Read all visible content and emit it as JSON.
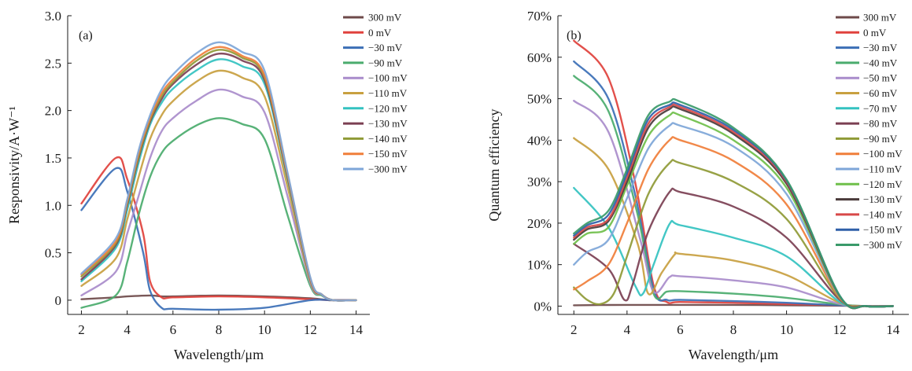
{
  "chart_data": [
    {
      "type": "line",
      "panel_label": "(a)",
      "title": "",
      "xlabel": "Wavelength/μm",
      "ylabel": "Responsivity/A·W⁻¹",
      "xlim": [
        1.4,
        14.6
      ],
      "ylim": [
        -0.15,
        3.0
      ],
      "xticks": [
        2,
        4,
        6,
        8,
        10,
        12,
        14
      ],
      "xtick_labels": [
        "2",
        "4",
        "6",
        "8",
        "10",
        "12",
        "14"
      ],
      "yticks": [
        0,
        0.5,
        1.0,
        1.5,
        2.0,
        2.5,
        3.0
      ],
      "ytick_labels": [
        "0",
        "0.5",
        "1.0",
        "1.5",
        "2.0",
        "2.5",
        "3.0"
      ],
      "grid": false,
      "legend_position": "top-right",
      "series": [
        {
          "name": "300 mV",
          "color": "#6e4a4a",
          "x": [
            2,
            3.5,
            4,
            5,
            5.5,
            6,
            8,
            10,
            12,
            12.8,
            13,
            14
          ],
          "y": [
            0.01,
            0.03,
            0.04,
            0.05,
            0.04,
            0.04,
            0.05,
            0.04,
            0.02,
            0.0,
            0.0,
            0.0
          ]
        },
        {
          "name": "0 mV",
          "color": "#e0413c",
          "x": [
            2,
            3.5,
            4,
            4.7,
            5,
            5.5,
            6,
            8,
            10,
            12,
            13,
            14
          ],
          "y": [
            1.02,
            1.5,
            1.28,
            0.7,
            0.2,
            0.03,
            0.03,
            0.04,
            0.03,
            0.01,
            0.0,
            0.0
          ]
        },
        {
          "name": "−30 mV",
          "color": "#3b6fb6",
          "x": [
            2,
            3.5,
            4,
            4.7,
            5,
            5.5,
            6,
            8,
            10,
            12,
            13,
            14
          ],
          "y": [
            0.95,
            1.39,
            1.15,
            0.5,
            0.1,
            -0.08,
            -0.09,
            -0.1,
            -0.08,
            0.0,
            0.0,
            0.0
          ]
        },
        {
          "name": "−90 mV",
          "color": "#4aab6d",
          "x": [
            2,
            3.5,
            4,
            4.5,
            5,
            5.5,
            6,
            7,
            8,
            9,
            10,
            11,
            12,
            12.5,
            13,
            14
          ],
          "y": [
            -0.08,
            0.05,
            0.4,
            0.9,
            1.3,
            1.55,
            1.68,
            1.84,
            1.92,
            1.86,
            1.7,
            0.9,
            0.15,
            0.05,
            0.0,
            0.0
          ]
        },
        {
          "name": "−100 mV",
          "color": "#a98ccb",
          "x": [
            2,
            3.5,
            4,
            4.5,
            5,
            5.5,
            6,
            7,
            8,
            9,
            10,
            11,
            12,
            12.5,
            13,
            14
          ],
          "y": [
            0.05,
            0.3,
            0.7,
            1.1,
            1.5,
            1.78,
            1.92,
            2.1,
            2.22,
            2.15,
            1.98,
            1.1,
            0.18,
            0.06,
            0.0,
            0.0
          ]
        },
        {
          "name": "−110 mV",
          "color": "#c8a040",
          "x": [
            2,
            3.5,
            4,
            4.5,
            5,
            5.5,
            6,
            7,
            8,
            9,
            10,
            11,
            12,
            12.5,
            13,
            14
          ],
          "y": [
            0.15,
            0.44,
            0.85,
            1.3,
            1.7,
            1.95,
            2.1,
            2.3,
            2.42,
            2.35,
            2.15,
            1.2,
            0.2,
            0.06,
            0.0,
            0.0
          ]
        },
        {
          "name": "−120 mV",
          "color": "#33c2c0",
          "x": [
            2,
            3.5,
            4,
            4.5,
            5,
            5.5,
            6,
            7,
            8,
            9,
            10,
            11,
            12,
            12.5,
            13,
            14
          ],
          "y": [
            0.2,
            0.55,
            0.95,
            1.45,
            1.85,
            2.08,
            2.23,
            2.42,
            2.54,
            2.47,
            2.28,
            1.28,
            0.22,
            0.06,
            0.0,
            0.0
          ]
        },
        {
          "name": "−130 mV",
          "color": "#7b3f52",
          "x": [
            2,
            3.5,
            4,
            4.5,
            5,
            5.5,
            6,
            7,
            8,
            9,
            10,
            11,
            12,
            12.5,
            13,
            14
          ],
          "y": [
            0.22,
            0.58,
            1.0,
            1.5,
            1.88,
            2.12,
            2.28,
            2.48,
            2.6,
            2.53,
            2.32,
            1.3,
            0.22,
            0.06,
            0.0,
            0.0
          ]
        },
        {
          "name": "−140 mV",
          "color": "#8f9a36",
          "x": [
            2,
            3.5,
            4,
            4.5,
            5,
            5.5,
            6,
            7,
            8,
            9,
            10,
            11,
            12,
            12.5,
            13,
            14
          ],
          "y": [
            0.25,
            0.6,
            1.02,
            1.52,
            1.9,
            2.15,
            2.3,
            2.52,
            2.64,
            2.56,
            2.35,
            1.32,
            0.23,
            0.06,
            0.0,
            0.0
          ]
        },
        {
          "name": "−150 mV",
          "color": "#f07e3a",
          "x": [
            2,
            3.5,
            4,
            4.5,
            5,
            5.5,
            6,
            7,
            8,
            9,
            10,
            11,
            12,
            12.5,
            13,
            14
          ],
          "y": [
            0.27,
            0.62,
            1.04,
            1.55,
            1.92,
            2.18,
            2.33,
            2.55,
            2.67,
            2.58,
            2.37,
            1.33,
            0.23,
            0.06,
            0.0,
            0.0
          ]
        },
        {
          "name": "−300 mV",
          "color": "#7ea6d8",
          "x": [
            2,
            3.5,
            4,
            4.5,
            5,
            5.5,
            6,
            7,
            8,
            9,
            10,
            11,
            12,
            12.5,
            13,
            14
          ],
          "y": [
            0.28,
            0.65,
            1.06,
            1.58,
            1.95,
            2.22,
            2.38,
            2.6,
            2.72,
            2.62,
            2.42,
            1.35,
            0.24,
            0.06,
            0.0,
            0.0
          ]
        }
      ]
    },
    {
      "type": "line",
      "panel_label": "(b)",
      "title": "",
      "xlabel": "Wavelength/μm",
      "ylabel": "Quantum efficiency",
      "xlim": [
        1.4,
        14.6
      ],
      "ylim": [
        -2,
        70
      ],
      "xticks": [
        2,
        4,
        6,
        8,
        10,
        12,
        14
      ],
      "xtick_labels": [
        "2",
        "4",
        "6",
        "8",
        "10",
        "12",
        "14"
      ],
      "yticks": [
        0,
        10,
        20,
        30,
        40,
        50,
        60,
        70
      ],
      "ytick_labels": [
        "0%",
        "10%",
        "20%",
        "30%",
        "40%",
        "50%",
        "60%",
        "70%"
      ],
      "grid": false,
      "legend_position": "top-right",
      "series": [
        {
          "name": "300 mV",
          "color": "#6e4a4a",
          "x": [
            2,
            4,
            6,
            8,
            10,
            12,
            13,
            14
          ],
          "y": [
            0.2,
            0.3,
            0.3,
            0.3,
            0.2,
            0.1,
            0.0,
            0.0
          ]
        },
        {
          "name": "0 mV",
          "color": "#e0413c",
          "x": [
            2,
            3.3,
            4.3,
            5,
            5.5,
            6,
            8,
            10,
            12,
            13,
            14
          ],
          "y": [
            64,
            55,
            30,
            5,
            1,
            1,
            0.8,
            0.5,
            0.2,
            0.0,
            0.0
          ]
        },
        {
          "name": "−30 mV",
          "color": "#3b6fb6",
          "x": [
            2,
            3.3,
            4.3,
            5,
            5.5,
            6,
            8,
            10,
            12,
            13,
            14
          ],
          "y": [
            59,
            50,
            27,
            4,
            1.5,
            1.5,
            1.2,
            0.8,
            0.2,
            0.0,
            0.0
          ]
        },
        {
          "name": "−40 mV",
          "color": "#4aab6d",
          "x": [
            2,
            3.3,
            4.4,
            5,
            5.5,
            6,
            8,
            10,
            12,
            13,
            14
          ],
          "y": [
            55.5,
            47,
            22,
            3,
            3.5,
            3.6,
            3,
            2,
            0.4,
            0.0,
            0.0
          ]
        },
        {
          "name": "−50 mV",
          "color": "#a98ccb",
          "x": [
            2,
            3.3,
            4.5,
            5,
            5.6,
            6,
            8,
            10,
            12,
            13,
            14
          ],
          "y": [
            49.5,
            42,
            16,
            3.5,
            7,
            7.2,
            6.2,
            4.5,
            0.5,
            0.0,
            0.0
          ]
        },
        {
          "name": "−60 mV",
          "color": "#c8a040",
          "x": [
            2,
            3.3,
            4.4,
            4.8,
            5.3,
            5.8,
            6,
            8,
            10,
            12,
            13,
            14
          ],
          "y": [
            40.5,
            33,
            15,
            3,
            8,
            12.5,
            12.6,
            11,
            7.5,
            0.8,
            0.0,
            0.0
          ]
        },
        {
          "name": "−70 mV",
          "color": "#33c2c0",
          "x": [
            2,
            3.3,
            4.3,
            4.6,
            5,
            5.6,
            6,
            8,
            10,
            12,
            13,
            14
          ],
          "y": [
            28.5,
            19,
            5,
            3,
            10,
            19.8,
            19.5,
            16.5,
            12,
            1,
            0.0,
            0.0
          ]
        },
        {
          "name": "−80 mV",
          "color": "#7b3f52",
          "x": [
            2,
            3.3,
            3.9,
            4.2,
            4.8,
            5.6,
            6,
            8,
            10,
            12,
            13,
            14
          ],
          "y": [
            15,
            9,
            1.5,
            5,
            18,
            27.5,
            27.5,
            24,
            16.5,
            1.5,
            0.0,
            0.0
          ]
        },
        {
          "name": "−90 mV",
          "color": "#8f9a36",
          "x": [
            2,
            2.5,
            3,
            3.5,
            4,
            4.8,
            5.6,
            6,
            8,
            10,
            12,
            13,
            14
          ],
          "y": [
            4.5,
            1.5,
            0.5,
            3,
            12,
            27,
            34.5,
            34.5,
            30,
            21,
            1.8,
            0.0,
            0.0
          ]
        },
        {
          "name": "−100 mV",
          "color": "#f07e3a",
          "x": [
            2,
            2.5,
            3.3,
            4,
            4.8,
            5.6,
            6,
            8,
            10,
            12,
            13,
            14
          ],
          "y": [
            4,
            6,
            10,
            20,
            33,
            40,
            40,
            35,
            24.5,
            2,
            0.0,
            0.0
          ]
        },
        {
          "name": "−110 mV",
          "color": "#7ea6d8",
          "x": [
            2,
            2.5,
            3.3,
            4,
            4.8,
            5.6,
            6,
            8,
            10,
            12,
            13,
            14
          ],
          "y": [
            10,
            13,
            16,
            26,
            38,
            43.5,
            43.5,
            38.5,
            27,
            2.2,
            0.0,
            0.0
          ]
        },
        {
          "name": "−120 mV",
          "color": "#6fbf4a",
          "x": [
            2,
            2.5,
            3.3,
            4,
            4.8,
            5.6,
            6,
            8,
            10,
            12,
            13,
            14
          ],
          "y": [
            15,
            17.5,
            19,
            29,
            41,
            46,
            46,
            40,
            28.5,
            2.3,
            0.0,
            0.0
          ]
        },
        {
          "name": "−130 mV",
          "color": "#4a3a3a",
          "x": [
            2,
            2.5,
            3.3,
            4,
            4.8,
            5.6,
            6,
            8,
            10,
            12,
            13,
            14
          ],
          "y": [
            16,
            18.5,
            20.5,
            30,
            43,
            47.5,
            47.5,
            41.5,
            29.5,
            2.4,
            0.0,
            0.0
          ]
        },
        {
          "name": "−140 mV",
          "color": "#d84848",
          "x": [
            2,
            2.5,
            3.3,
            4,
            4.8,
            5.6,
            6,
            8,
            10,
            12,
            13,
            14
          ],
          "y": [
            16.5,
            19,
            21,
            31,
            44,
            48,
            48,
            42,
            30,
            2.4,
            0.0,
            0.0
          ]
        },
        {
          "name": "−150 mV",
          "color": "#2f5fa8",
          "x": [
            2,
            2.5,
            3.3,
            4,
            4.8,
            5.6,
            6,
            8,
            10,
            12,
            13,
            14
          ],
          "y": [
            17,
            19.5,
            22,
            32,
            45,
            48.5,
            48.5,
            42.5,
            30.3,
            2.5,
            0.0,
            0.0
          ]
        },
        {
          "name": "−300 mV",
          "color": "#3a9a6a",
          "x": [
            2,
            2.5,
            3.3,
            4,
            4.8,
            5.6,
            6,
            8,
            10,
            12,
            13,
            14
          ],
          "y": [
            17.5,
            20,
            23,
            33,
            46,
            49.3,
            49.3,
            43,
            30.5,
            2.5,
            0.0,
            0.0
          ]
        }
      ]
    }
  ]
}
